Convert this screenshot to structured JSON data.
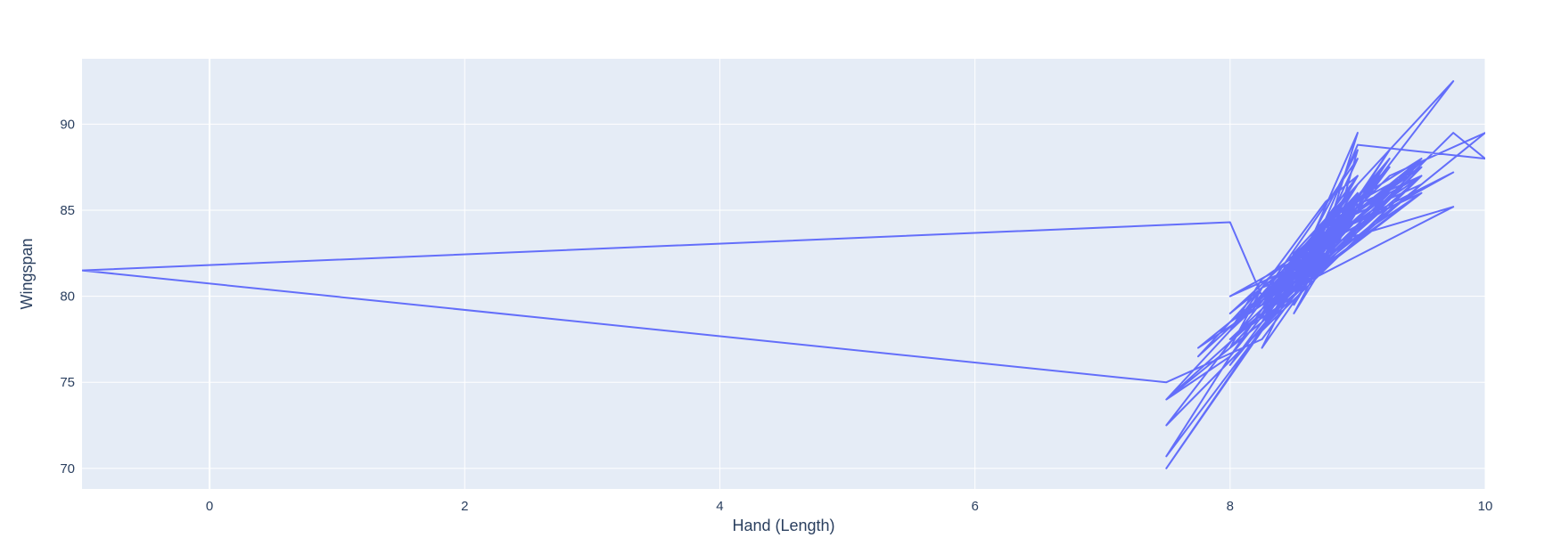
{
  "chart_data": {
    "type": "line",
    "title": "",
    "xlabel": "Hand (Length)",
    "ylabel": "Wingspan",
    "xlim": [
      -1,
      10
    ],
    "ylim": [
      68.8,
      93.8
    ],
    "xticks": [
      0,
      2,
      4,
      6,
      8,
      10
    ],
    "yticks": [
      70,
      75,
      80,
      85,
      90
    ],
    "grid": true,
    "legend": "none",
    "colors": {
      "line": "#636efa",
      "plot_bg": "#e5ecf6",
      "grid": "#ffffff",
      "text": "#2a3f5f"
    },
    "series": [
      {
        "x": [
          8.75,
          8.5,
          9.0,
          8.25,
          8.75,
          9.0,
          7.5,
          8.25,
          8.5,
          9.25,
          8.0,
          9.5,
          8.75,
          8.5,
          9.0,
          9.75,
          8.25,
          8.75,
          8.5,
          9.0,
          8.0,
          8.25,
          9.5,
          8.75,
          7.5,
          8.5,
          9.25,
          8.75,
          8.25,
          9.0,
          8.5,
          9.5,
          8.0,
          8.75,
          10.0,
          9.25,
          8.5,
          7.75,
          8.25,
          9.0,
          8.75,
          8.5,
          9.5,
          8.25,
          8.0,
          9.0,
          8.75,
          7.5,
          8.25,
          8.5,
          9.75,
          8.0,
          8.75,
          9.0,
          8.5,
          8.25,
          9.5,
          8.75,
          9.0,
          8.5,
          8.25,
          7.5,
          8.0,
          8.75,
          9.25,
          8.5,
          9.0,
          8.25,
          9.75,
          8.75,
          8.5,
          9.0,
          8.0,
          8.25,
          9.5,
          8.75,
          8.5,
          9.0,
          7.75,
          8.25,
          8.75,
          9.0,
          8.5,
          9.25,
          8.0,
          8.5,
          9.0,
          8.75,
          8.25,
          9.5,
          8.5,
          8.75,
          9.0,
          8.25,
          8.0,
          -1.0,
          7.5,
          8.25,
          8.75,
          9.0,
          8.5,
          9.25,
          8.75,
          8.25,
          9.5,
          8.5,
          9.0,
          8.75,
          8.0,
          8.25,
          9.5,
          8.75,
          9.0,
          8.5,
          8.25,
          9.75,
          10.0,
          9.0,
          8.75,
          8.5,
          9.25,
          9.0,
          8.25,
          8.5,
          8.75,
          9.0,
          8.5,
          8.0,
          9.5,
          8.75,
          8.25,
          9.0,
          8.5,
          8.75,
          7.5,
          8.0,
          8.5,
          9.0,
          8.25,
          8.75,
          9.5,
          8.5,
          9.0,
          8.75,
          8.25,
          9.0,
          8.5,
          8.75,
          9.25,
          8.5,
          8.0,
          8.75,
          9.0,
          8.5,
          8.25,
          9.5,
          8.75,
          9.0,
          8.5,
          8.25,
          8.75,
          9.0,
          8.5
        ],
        "y": [
          83.0,
          79.5,
          85.5,
          80.0,
          82.5,
          86.0,
          74.0,
          78.5,
          81.5,
          87.5,
          79.0,
          88.0,
          83.5,
          80.5,
          86.5,
          92.5,
          78.0,
          84.0,
          82.0,
          85.0,
          77.0,
          80.5,
          87.0,
          84.5,
          72.5,
          80.0,
          88.5,
          83.0,
          79.0,
          85.5,
          81.0,
          86.0,
          77.5,
          82.0,
          89.5,
          87.0,
          81.5,
          77.0,
          79.5,
          84.0,
          82.5,
          80.0,
          87.5,
          78.5,
          76.0,
          85.0,
          83.5,
          70.0,
          78.0,
          82.5,
          87.2,
          80.0,
          82.5,
          86.0,
          81.0,
          78.5,
          86.5,
          84.0,
          85.5,
          82.0,
          79.0,
          74.0,
          76.5,
          83.5,
          88.0,
          80.5,
          87.0,
          79.5,
          85.2,
          83.0,
          82.5,
          86.5,
          78.0,
          81.0,
          87.5,
          84.5,
          80.0,
          85.0,
          76.5,
          80.5,
          82.0,
          88.5,
          81.5,
          86.0,
          78.5,
          81.0,
          89.5,
          83.5,
          78.0,
          87.0,
          80.5,
          84.0,
          88.0,
          80.0,
          84.3,
          81.5,
          75.0,
          77.5,
          82.5,
          86.0,
          80.0,
          87.5,
          83.0,
          79.5,
          88.0,
          81.0,
          85.5,
          83.5,
          79.0,
          80.5,
          87.0,
          84.0,
          86.5,
          82.0,
          78.5,
          89.5,
          88.0,
          88.8,
          84.5,
          80.5,
          86.0,
          85.0,
          79.5,
          81.5,
          82.5,
          85.5,
          80.0,
          77.5,
          88.0,
          84.5,
          77.0,
          85.0,
          82.0,
          83.0,
          70.7,
          76.5,
          82.0,
          86.5,
          79.5,
          83.5,
          86.0,
          80.5,
          84.5,
          83.0,
          80.0,
          85.0,
          79.0,
          82.5,
          88.0,
          81.5,
          78.0,
          85.5,
          87.0,
          81.0,
          79.5,
          87.8,
          83.5,
          86.0,
          82.0,
          79.0,
          82.5,
          84.5,
          80.5
        ]
      }
    ]
  }
}
